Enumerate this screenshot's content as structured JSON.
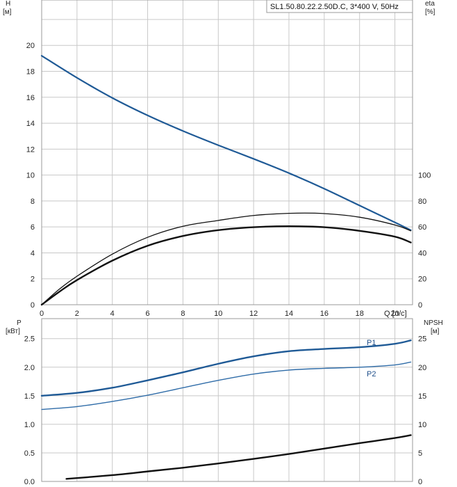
{
  "title": "SL1.50.80.22.2.50D.C, 3*400 V, 50Hz",
  "colors": {
    "blue": "#1f5a96",
    "blue_light": "#2f6ca8",
    "black": "#111111",
    "grid": "#c8c8c8"
  },
  "chart_data": [
    {
      "type": "line",
      "name": "upper",
      "x_axis": {
        "label": "Q [л/с]",
        "range": [
          0,
          21
        ],
        "ticks": [
          0,
          2,
          4,
          6,
          8,
          10,
          12,
          14,
          16,
          18,
          20
        ]
      },
      "y_left": {
        "label_top": "H",
        "label_unit": "[м]",
        "range": [
          0,
          23.5
        ],
        "ticks": [
          0,
          2,
          4,
          6,
          8,
          10,
          12,
          14,
          16,
          18,
          20
        ]
      },
      "y_right": {
        "label_top": "eta",
        "label_unit": "[%]",
        "range": [
          0,
          235
        ],
        "ticks": [
          0,
          20,
          40,
          60,
          80,
          100
        ]
      },
      "grid": true,
      "series": [
        {
          "key": "H",
          "color": "blue",
          "width": 2.2,
          "axis": "left",
          "x": [
            0,
            2,
            4,
            6,
            8,
            10,
            12,
            14,
            16,
            18,
            20,
            20.9
          ],
          "y": [
            19.2,
            17.5,
            15.95,
            14.6,
            13.4,
            12.3,
            11.25,
            10.15,
            8.95,
            7.65,
            6.35,
            5.75
          ]
        },
        {
          "key": "eta",
          "color": "black",
          "width": 1.3,
          "axis": "right",
          "x": [
            0,
            1,
            2,
            4,
            6,
            8,
            10,
            12,
            14,
            16,
            18,
            20,
            20.9
          ],
          "y": [
            0,
            12,
            22,
            39,
            52,
            60.5,
            65,
            68.8,
            70.5,
            70.3,
            67.5,
            61.5,
            57
          ]
        },
        {
          "key": "eta2",
          "color": "black",
          "width": 2.4,
          "axis": "right",
          "x": [
            0,
            1,
            2,
            4,
            6,
            8,
            10,
            12,
            14,
            16,
            18,
            20,
            20.9
          ],
          "y": [
            0,
            10,
            19,
            34,
            45.5,
            53,
            57.5,
            59.8,
            60.5,
            59.8,
            57,
            52.5,
            48
          ]
        }
      ]
    },
    {
      "type": "line",
      "name": "lower",
      "x_axis": {
        "label": "",
        "range": [
          0,
          21
        ],
        "ticks": []
      },
      "y_left": {
        "label_top": "P",
        "label_unit": "[кВт]",
        "range": [
          0,
          2.85
        ],
        "ticks": [
          "0.0",
          "0.5",
          "1.0",
          "1.5",
          "2.0",
          "2.5"
        ]
      },
      "y_right": {
        "label_top": "NPSH",
        "label_unit": "[м]",
        "range": [
          0,
          28.5
        ],
        "ticks": [
          0,
          5,
          10,
          15,
          20,
          25
        ]
      },
      "grid": true,
      "series": [
        {
          "key": "P1",
          "name": "P1",
          "color": "blue",
          "width": 2.4,
          "axis": "left",
          "x": [
            0,
            2,
            4,
            6,
            8,
            10,
            12,
            14,
            16,
            18,
            20,
            20.9
          ],
          "y": [
            1.5,
            1.55,
            1.64,
            1.77,
            1.91,
            2.06,
            2.19,
            2.28,
            2.32,
            2.35,
            2.41,
            2.47
          ]
        },
        {
          "key": "P2",
          "name": "P2",
          "color": "blue_light",
          "width": 1.4,
          "axis": "left",
          "x": [
            0,
            2,
            4,
            6,
            8,
            10,
            12,
            14,
            16,
            18,
            20,
            20.9
          ],
          "y": [
            1.26,
            1.31,
            1.4,
            1.51,
            1.64,
            1.77,
            1.88,
            1.95,
            1.98,
            2.0,
            2.04,
            2.09
          ]
        },
        {
          "key": "NPSH",
          "color": "black",
          "width": 2.4,
          "axis": "right",
          "x": [
            1.4,
            4,
            6,
            8,
            10,
            12,
            14,
            16,
            18,
            20,
            20.9
          ],
          "y": [
            0.45,
            1.1,
            1.75,
            2.4,
            3.15,
            3.95,
            4.8,
            5.75,
            6.7,
            7.6,
            8.1
          ]
        }
      ]
    }
  ]
}
